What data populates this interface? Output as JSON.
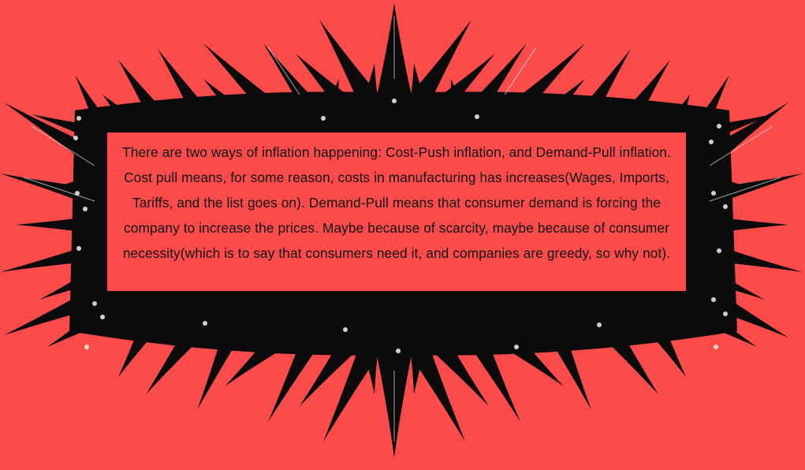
{
  "colors": {
    "background": "#fb4b4b",
    "frame": "#0b0b0b",
    "highlight": "#f2f2f2",
    "text": "#111111"
  },
  "panel": {
    "text": "There are two ways of inflation happening: Cost-Push inflation, and Demand-Pull inflation. Cost pull means, for some reason, costs in manufacturing has increases(Wages, Imports, Tariffs, and the list goes on). Demand-Pull means that consumer demand is forcing the company to increase the prices. Maybe because of scarcity, maybe because of consumer necessity(which is to say that consumers need it, and companies are greedy, so why not)."
  }
}
